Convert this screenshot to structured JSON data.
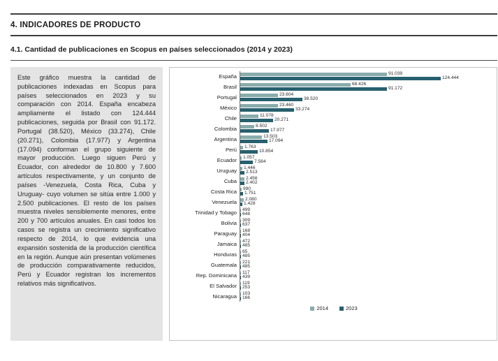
{
  "page": {
    "title": "4. INDICADORES DE PRODUCTO",
    "subtitle": "4.1. Cantidad de publicaciones en Scopus en países seleccionados (2014 y 2023)"
  },
  "description": {
    "text": "Este gráfico muestra la cantidad de publicaciones indexadas en Scopus para países seleccionados en 2023 y su comparación con 2014. España encabeza ampliamente el listado con 124.444 publicaciones, seguida por Brasil con 91.172. Portugal (38.520), México (33.274), Chile (20.271), Colombia (17.977) y Argentina (17.094) conforman el grupo siguiente de mayor producción. Luego siguen Perú y Ecuador, con alrededor de 10.800 y 7.600 artículos respectivamente, y un conjunto de países -Venezuela, Costa Rica, Cuba y Uruguay- cuyo volumen se sitúa entre 1.000 y 2.500 publicaciones. El resto de los países muestra niveles sensiblemente menores, entre 200 y 700 artículos anuales. En casi todos los casos se registra un crecimiento significativo respecto de 2014, lo que evidencia una expansión sostenida de la producción científica en la región. Aunque aún presentan volúmenes de producción comparativamente reducidos, Perú y Ecuador registran los incrementos relativos más significativos."
  },
  "chart_data": {
    "type": "bar",
    "orientation": "horizontal",
    "title": "",
    "xlabel": "",
    "ylabel": "",
    "xlim": [
      0,
      130000
    ],
    "grid": false,
    "legend_position": "bottom",
    "categories": [
      "España",
      "Brasil",
      "Portugal",
      "México",
      "Chile",
      "Colombia",
      "Argentina",
      "Perú",
      "Ecuador",
      "Uruguay",
      "Cuba",
      "Costa Rica",
      "Venezuela",
      "Trinidad y Tobago",
      "Bolivia",
      "Paraguay",
      "Jamaica",
      "Honduras",
      "Guatemala",
      "Rep. Dominicana",
      "El Salvador",
      "Nicaragua"
    ],
    "series": [
      {
        "name": "2014",
        "color": "#8aabab",
        "values": [
          91039,
          68426,
          23604,
          23460,
          11078,
          8502,
          13503,
          1763,
          1057,
          1446,
          2456,
          990,
          2080,
          499,
          309,
          168,
          472,
          65,
          221,
          117,
          119,
          103
        ]
      },
      {
        "name": "2023",
        "color": "#27606e",
        "values": [
          124444,
          91172,
          38520,
          33274,
          20271,
          17977,
          17094,
          10854,
          7584,
          2513,
          2402,
          1751,
          1428,
          648,
          637,
          404,
          485,
          485,
          485,
          439,
          253,
          166
        ]
      }
    ]
  }
}
